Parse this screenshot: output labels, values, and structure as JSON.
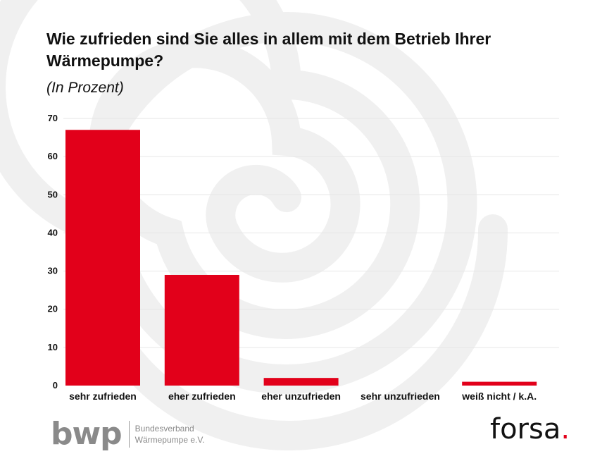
{
  "title": "Wie zufrieden sind Sie alles in allem mit dem Betrieb Ihrer Wärmepumpe?",
  "subtitle": "(In Prozent)",
  "chart_data": {
    "type": "bar",
    "categories": [
      "sehr zufrieden",
      "eher zufrieden",
      "eher unzufrieden",
      "sehr unzufrieden",
      "weiß nicht / k.A."
    ],
    "values": [
      67,
      29,
      2,
      0,
      1
    ],
    "ylim": [
      0,
      70
    ],
    "yticks": [
      0,
      10,
      20,
      30,
      40,
      50,
      60,
      70
    ],
    "grid": true,
    "bar_color": "#e2001a",
    "grid_color": "#e6e6e6"
  },
  "logos": {
    "bwp_mark": "bwp",
    "bwp_line1": "Bundesverband",
    "bwp_line2": "Wärmepumpe e.V.",
    "forsa_word": "forsa",
    "forsa_dot": "."
  }
}
